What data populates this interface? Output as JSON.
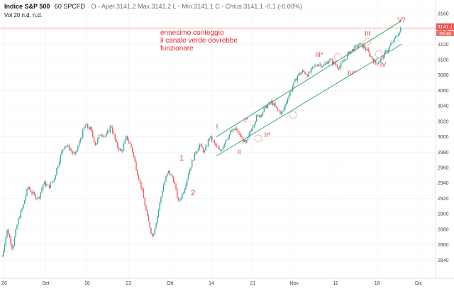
{
  "legend": {
    "symbol": "Indice S&P 500",
    "interval": "60",
    "exchange": "SPCFD",
    "ohlc": "O - Aper.3141.2  Max.3141.2  L - Min.3141.1  C - Chius.3141.1  -0.1 (-0.00%)",
    "volume": "Vol 20  n.d.  n.d."
  },
  "annotation": {
    "line1": "ennesimo conteggio",
    "line2": "il canale verde dovrebbe",
    "line3": "funzionare"
  },
  "price_badge": "3141.1",
  "time_badge": "59:46",
  "colors": {
    "up": "#26a69a",
    "down": "#ef5350",
    "channel": "#2e9e5b",
    "annotation": "#e03a3a",
    "grid": "#eef0f3"
  },
  "chart_data": {
    "type": "candlestick",
    "title": "",
    "xlabel": "",
    "ylabel": "",
    "ylim": [
      2820,
      3170
    ],
    "grid": true,
    "x_ticks": [
      "26",
      "Set",
      "16",
      "23",
      "Ott",
      "14",
      "21",
      "Nov",
      "11",
      "18",
      "Dic"
    ],
    "y_ticks": [
      2840,
      2860,
      2880,
      2900,
      2920,
      2940,
      2960,
      2980,
      3000,
      3020,
      3040,
      3060,
      3080,
      3100,
      3120,
      3140,
      3160
    ],
    "last_price": 3141.1,
    "price_path": [
      [
        0,
        2845
      ],
      [
        1,
        2880
      ],
      [
        2,
        2855
      ],
      [
        3,
        2890
      ],
      [
        4,
        2910
      ],
      [
        5,
        2935
      ],
      [
        6,
        2925
      ],
      [
        7,
        2920
      ],
      [
        8,
        2940
      ],
      [
        9,
        2935
      ],
      [
        10,
        2945
      ],
      [
        11,
        2970
      ],
      [
        12,
        2990
      ],
      [
        13,
        2985
      ],
      [
        14,
        2975
      ],
      [
        15,
        2995
      ],
      [
        16,
        3015
      ],
      [
        17,
        3010
      ],
      [
        18,
        2990
      ],
      [
        19,
        3005
      ],
      [
        20,
        3000
      ],
      [
        21,
        3015
      ],
      [
        22,
        2990
      ],
      [
        23,
        2980
      ],
      [
        24,
        3000
      ],
      [
        25,
        2985
      ],
      [
        26,
        2955
      ],
      [
        27,
        2930
      ],
      [
        28,
        2895
      ],
      [
        29,
        2870
      ],
      [
        30,
        2900
      ],
      [
        31,
        2935
      ],
      [
        32,
        2955
      ],
      [
        33,
        2945
      ],
      [
        34,
        2915
      ],
      [
        35,
        2930
      ],
      [
        36,
        2955
      ],
      [
        37,
        2975
      ],
      [
        38,
        2990
      ],
      [
        39,
        2980
      ],
      [
        40,
        3000
      ],
      [
        41,
        2990
      ],
      [
        42,
        2980
      ],
      [
        43,
        2995
      ],
      [
        44,
        3005
      ],
      [
        45,
        3010
      ],
      [
        46,
        3000
      ],
      [
        47,
        2990
      ],
      [
        48,
        3010
      ],
      [
        49,
        3025
      ],
      [
        50,
        3030
      ],
      [
        51,
        3040
      ],
      [
        52,
        3045
      ],
      [
        53,
        3035
      ],
      [
        54,
        3030
      ],
      [
        55,
        3050
      ],
      [
        56,
        3065
      ],
      [
        57,
        3080
      ],
      [
        58,
        3085
      ],
      [
        59,
        3080
      ],
      [
        60,
        3090
      ],
      [
        61,
        3095
      ],
      [
        62,
        3092
      ],
      [
        63,
        3100
      ],
      [
        64,
        3095
      ],
      [
        65,
        3090
      ],
      [
        66,
        3100
      ],
      [
        67,
        3110
      ],
      [
        68,
        3115
      ],
      [
        69,
        3120
      ],
      [
        70,
        3115
      ],
      [
        71,
        3105
      ],
      [
        72,
        3095
      ],
      [
        73,
        3100
      ],
      [
        74,
        3110
      ],
      [
        75,
        3120
      ],
      [
        76,
        3130
      ],
      [
        77,
        3141.1
      ]
    ],
    "channel": {
      "upper": [
        [
          3035,
          3000
        ],
        [
          3120,
          3140
        ]
      ],
      "lower": [
        [
          3035,
          2975
        ],
        [
          3120,
          3110
        ]
      ]
    },
    "wave_labels": [
      "1",
      "2",
      "I",
      "II",
      "I*",
      "II*",
      "III*",
      "IV*",
      "III",
      "IV",
      "V?"
    ]
  }
}
